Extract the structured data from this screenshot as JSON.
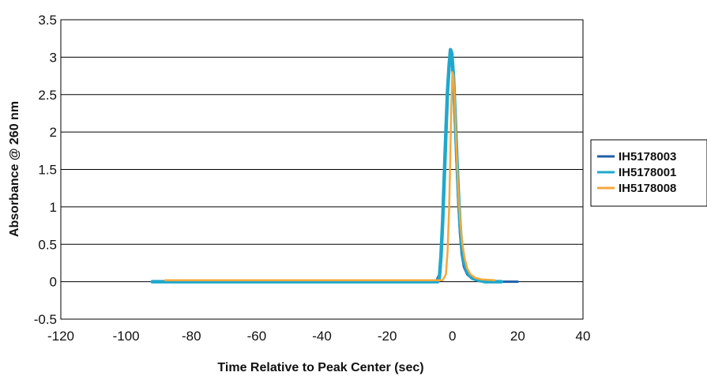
{
  "chart_data": {
    "type": "line",
    "title": "",
    "xlabel": "Time Relative to Peak Center (sec)",
    "ylabel": "Absorbance @ 260 nm",
    "xlim": [
      -120,
      40
    ],
    "ylim": [
      -0.5,
      3.5
    ],
    "x_ticks": [
      -120,
      -100,
      -80,
      -60,
      -40,
      -20,
      0,
      20,
      40
    ],
    "x_tick_labels": [
      "-120",
      "-100",
      "-80",
      "-60",
      "-40",
      "-20",
      "0",
      "20",
      "40"
    ],
    "y_ticks": [
      -0.5,
      0,
      0.5,
      1,
      1.5,
      2,
      2.5,
      3,
      3.5
    ],
    "y_tick_labels": [
      "-0.5",
      "0",
      "0.5",
      "1",
      "1.5",
      "2",
      "2.5",
      "3",
      "3.5"
    ],
    "grid": "horizontal",
    "legend_position": "right",
    "series": [
      {
        "name": "IH5178003",
        "color": "#1f5fa8",
        "points": [
          [
            -92,
            0.0
          ],
          [
            -60,
            0.0
          ],
          [
            -30,
            0.0
          ],
          [
            -10,
            0.0
          ],
          [
            -5,
            0.0
          ],
          [
            -4,
            0.1
          ],
          [
            -3.5,
            0.4
          ],
          [
            -3,
            0.9
          ],
          [
            -2.5,
            1.5
          ],
          [
            -2,
            2.1
          ],
          [
            -1.5,
            2.6
          ],
          [
            -1,
            2.95
          ],
          [
            -0.6,
            3.05
          ],
          [
            -0.2,
            2.95
          ],
          [
            0.3,
            2.6
          ],
          [
            0.8,
            2.1
          ],
          [
            1.3,
            1.55
          ],
          [
            1.8,
            1.05
          ],
          [
            2.3,
            0.65
          ],
          [
            2.8,
            0.38
          ],
          [
            3.5,
            0.2
          ],
          [
            4.5,
            0.1
          ],
          [
            6,
            0.04
          ],
          [
            8,
            0.01
          ],
          [
            12,
            0.0
          ],
          [
            20,
            0.0
          ]
        ]
      },
      {
        "name": "IH5178001",
        "color": "#20a8cc",
        "points": [
          [
            -92,
            0.0
          ],
          [
            -60,
            0.0
          ],
          [
            -30,
            0.0
          ],
          [
            -10,
            0.0
          ],
          [
            -4.5,
            0.0
          ],
          [
            -4,
            0.05
          ],
          [
            -3.5,
            0.35
          ],
          [
            -3,
            0.8
          ],
          [
            -2.5,
            1.4
          ],
          [
            -2,
            2.0
          ],
          [
            -1.5,
            2.55
          ],
          [
            -1,
            2.9
          ],
          [
            -0.6,
            3.1
          ],
          [
            -0.2,
            3.05
          ],
          [
            0.3,
            2.75
          ],
          [
            0.8,
            2.25
          ],
          [
            1.3,
            1.7
          ],
          [
            1.8,
            1.2
          ],
          [
            2.3,
            0.78
          ],
          [
            2.8,
            0.48
          ],
          [
            3.5,
            0.27
          ],
          [
            4.5,
            0.13
          ],
          [
            6,
            0.05
          ],
          [
            8,
            0.02
          ],
          [
            10,
            0.0
          ],
          [
            15,
            0.0
          ]
        ]
      },
      {
        "name": "IH5178008",
        "color": "#f5a83c",
        "points": [
          [
            -88,
            0.02
          ],
          [
            -60,
            0.02
          ],
          [
            -30,
            0.02
          ],
          [
            -10,
            0.02
          ],
          [
            -3,
            0.02
          ],
          [
            -2,
            0.1
          ],
          [
            -1.5,
            0.4
          ],
          [
            -1,
            1.0
          ],
          [
            -0.6,
            1.8
          ],
          [
            -0.3,
            2.45
          ],
          [
            0,
            2.8
          ],
          [
            0.3,
            2.75
          ],
          [
            0.7,
            2.4
          ],
          [
            1.2,
            1.8
          ],
          [
            1.8,
            1.2
          ],
          [
            2.4,
            0.8
          ],
          [
            3,
            0.52
          ],
          [
            3.7,
            0.32
          ],
          [
            4.5,
            0.18
          ],
          [
            5.5,
            0.1
          ],
          [
            7,
            0.05
          ],
          [
            9,
            0.03
          ],
          [
            13,
            0.02
          ]
        ]
      }
    ]
  }
}
